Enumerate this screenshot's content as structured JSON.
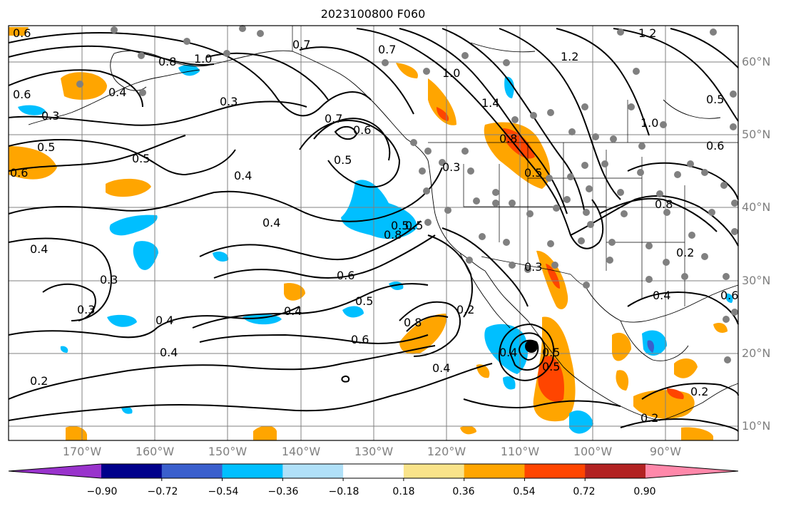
{
  "title": "2023100800 F060",
  "lat_labels": [
    "60°N",
    "50°N",
    "40°N",
    "30°N",
    "20°N",
    "10°N"
  ],
  "lon_labels": [
    "170°W",
    "160°W",
    "150°W",
    "140°W",
    "130°W",
    "120°W",
    "110°W",
    "100°W",
    "90°W"
  ],
  "colorbar": {
    "ticks": [
      "−0.90",
      "−0.72",
      "−0.54",
      "−0.36",
      "−0.18",
      "0.18",
      "0.36",
      "0.54",
      "0.72",
      "0.90"
    ],
    "colors": [
      "#9933cc",
      "#00008b",
      "#3a5fcd",
      "#00bfff",
      "#b0e0f8",
      "#ffffff",
      "#f9e38a",
      "#ffa500",
      "#ff4500",
      "#b22222",
      "#ff88aa"
    ]
  },
  "contour_labels": [
    "0.7",
    "0.8",
    "1.0",
    "0.4",
    "0.3",
    "0.5",
    "0.6",
    "0.4",
    "0.5",
    "0.3",
    "0.4",
    "0.3",
    "0.4",
    "0.4",
    "0.3",
    "0.2",
    "0.5",
    "0.4",
    "0.6",
    "0.7",
    "0.5",
    "0.6",
    "0.5",
    "0.4",
    "0.8",
    "0.6",
    "0.5",
    "0.8",
    "0.6",
    "0.4",
    "0.3",
    "0.2",
    "0.4",
    "0.5",
    "0.7",
    "1.0",
    "1.4",
    "0.8",
    "0.5",
    "0.3",
    "1.2",
    "1.2",
    "1.0",
    "0.5",
    "0.6",
    "0.8",
    "0.2",
    "0.4",
    "0.2",
    "0.6",
    "0.2",
    "0.5",
    "0.6"
  ]
}
